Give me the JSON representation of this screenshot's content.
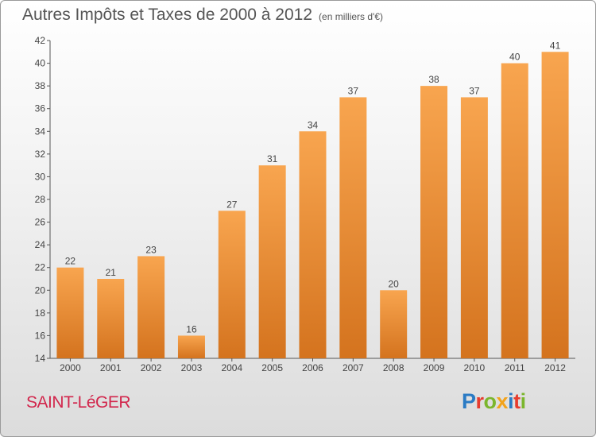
{
  "header": {
    "title": "Autres Impôts et Taxes de 2000 à 2012",
    "unit": "(en milliers d'€)"
  },
  "footer": {
    "commune": "SAINT-LéGER",
    "logo": "Proxiti"
  },
  "colors": {
    "bar_top": "#f8a54f",
    "bar_bottom": "#d4731e",
    "commune_text": "#d2264c"
  },
  "chart_data": {
    "type": "bar",
    "title": "Autres Impôts et Taxes de 2000 à 2012",
    "subtitle": "(en milliers d'€)",
    "categories": [
      "2000",
      "2001",
      "2002",
      "2003",
      "2004",
      "2005",
      "2006",
      "2007",
      "2008",
      "2009",
      "2010",
      "2011",
      "2012"
    ],
    "values": [
      22,
      21,
      23,
      16,
      27,
      31,
      34,
      37,
      20,
      38,
      37,
      40,
      41
    ],
    "ylim": [
      14,
      42
    ],
    "yticks": [
      14,
      16,
      18,
      20,
      22,
      24,
      26,
      28,
      30,
      32,
      34,
      36,
      38,
      40,
      42
    ],
    "grid": false,
    "data_labels": true
  }
}
